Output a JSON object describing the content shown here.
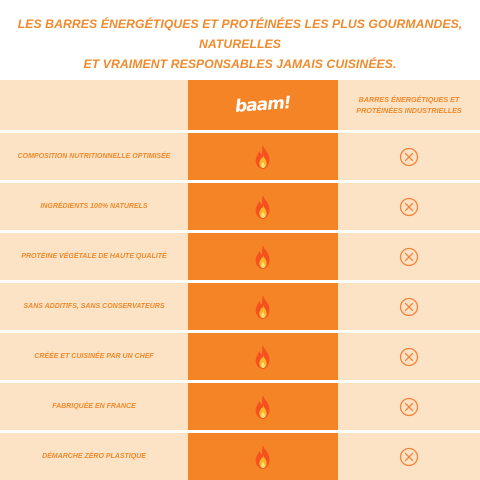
{
  "headline": {
    "line1": "LES BARRES ÉNERGÉTIQUES ET PROTÉINÉES LES PLUS GOURMANDES, NATURELLES",
    "line2": "ET VRAIMENT RESPONSABLES JAMAIS CUISINÉES."
  },
  "columns": {
    "baam_logo": "baam!",
    "industrial": "BARRES ÉNERGÉTIQUES ET PROTÉINÉES INDUSTRIELLES"
  },
  "rows": [
    {
      "label": "COMPOSITION NUTRITIONNELLE OPTIMISÉE",
      "baam": "fire-icon",
      "industrial": "x-circle-icon"
    },
    {
      "label": "INGRÉDIENTS 100% NATURELS",
      "baam": "fire-icon",
      "industrial": "x-circle-icon"
    },
    {
      "label": "PROTÉINE VÉGÉTALE DE HAUTE QUALITÉ",
      "baam": "fire-icon",
      "industrial": "x-circle-icon"
    },
    {
      "label": "SANS ADDITIFS, SANS CONSERVATEURS",
      "baam": "fire-icon",
      "industrial": "x-circle-icon"
    },
    {
      "label": "CRÉÉE ET CUISINÉE PAR UN CHEF",
      "baam": "fire-icon",
      "industrial": "x-circle-icon"
    },
    {
      "label": "FABRIQUÉE EN FRANCE",
      "baam": "fire-icon",
      "industrial": "x-circle-icon"
    },
    {
      "label": "DÉMARCHE ZÉRO PLASTIQUE",
      "baam": "fire-icon",
      "industrial": "x-circle-icon"
    }
  ],
  "colors": {
    "accent_orange": "#f58426",
    "text_orange": "#f08a2c",
    "cell_background": "#fde3c6"
  }
}
